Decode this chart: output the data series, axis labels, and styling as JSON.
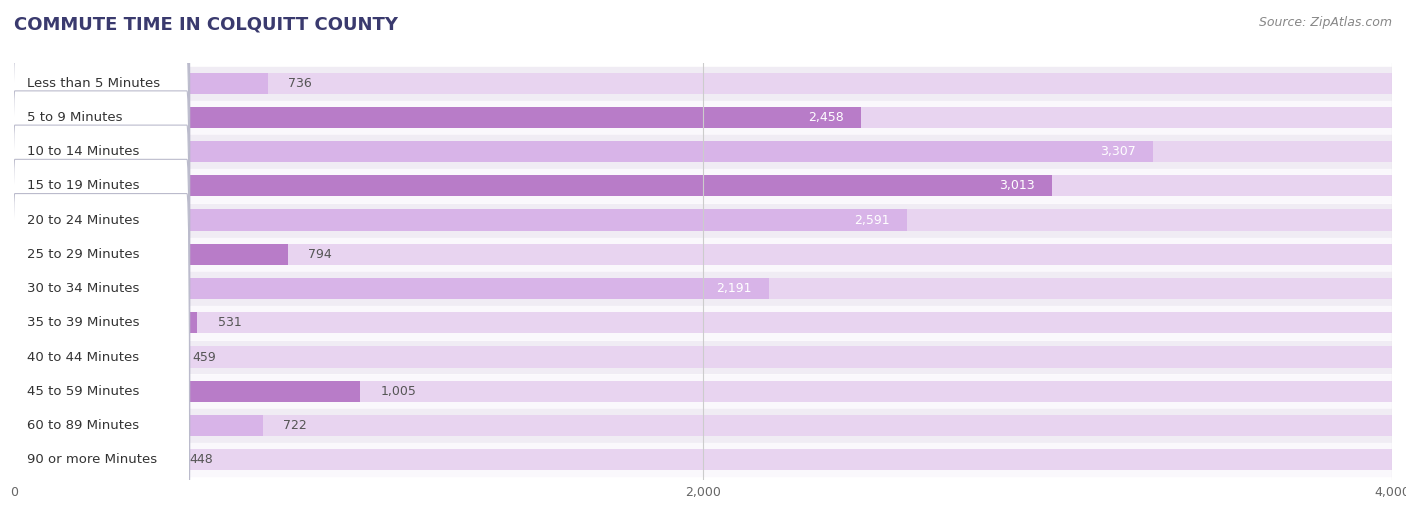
{
  "title": "COMMUTE TIME IN COLQUITT COUNTY",
  "source": "Source: ZipAtlas.com",
  "categories": [
    "Less than 5 Minutes",
    "5 to 9 Minutes",
    "10 to 14 Minutes",
    "15 to 19 Minutes",
    "20 to 24 Minutes",
    "25 to 29 Minutes",
    "30 to 34 Minutes",
    "35 to 39 Minutes",
    "40 to 44 Minutes",
    "45 to 59 Minutes",
    "60 to 89 Minutes",
    "90 or more Minutes"
  ],
  "values": [
    736,
    2458,
    3307,
    3013,
    2591,
    794,
    2191,
    531,
    459,
    1005,
    722,
    448
  ],
  "bar_color_light": "#d8b4e8",
  "bar_color_dark": "#b87cc8",
  "bar_bg_color": "#e8d4f0",
  "label_bg_color": "#ffffff",
  "label_border_color": "#cccccc",
  "row_bg_color_odd": "#f0ecf4",
  "row_bg_color_even": "#faf8fc",
  "xlim": [
    0,
    4000
  ],
  "xticks": [
    0,
    2000,
    4000
  ],
  "title_fontsize": 13,
  "source_fontsize": 9,
  "bar_label_fontsize": 9,
  "category_fontsize": 9.5,
  "axis_label_fontsize": 9,
  "background_color": "#ffffff",
  "grid_color": "#cccccc",
  "title_color": "#3a3a6e",
  "source_color": "#888888"
}
